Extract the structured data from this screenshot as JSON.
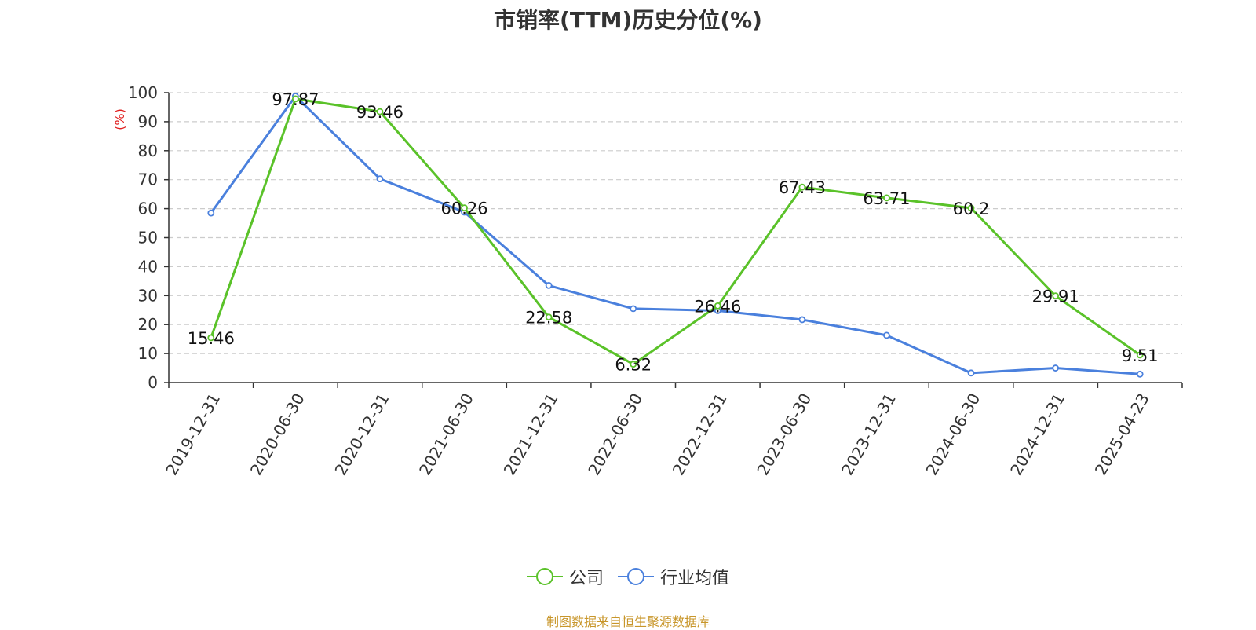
{
  "chart_data": {
    "type": "line",
    "title": "市销率(TTM)历史分位(%)",
    "ylabel": "(%)",
    "ylim": [
      0,
      100
    ],
    "yticks": [
      0,
      10,
      20,
      30,
      40,
      50,
      60,
      70,
      80,
      90,
      100
    ],
    "grid": true,
    "legend_position": "bottom-center",
    "categories": [
      "2019-12-31",
      "2020-06-30",
      "2020-12-31",
      "2021-06-30",
      "2021-12-31",
      "2022-06-30",
      "2022-12-31",
      "2023-06-30",
      "2023-12-31",
      "2024-06-30",
      "2024-12-31",
      "2025-04-23"
    ],
    "series": [
      {
        "name": "公司",
        "color": "#5ac229",
        "values": [
          15.46,
          97.87,
          93.46,
          60.26,
          22.58,
          6.32,
          26.46,
          67.43,
          63.71,
          60.2,
          29.91,
          9.51
        ],
        "data_labels": [
          "15.46",
          "97.87",
          "93.46",
          "60.26",
          "22.58",
          "6.32",
          "26.46",
          "67.43",
          "63.71",
          "60.2",
          "29.91",
          "9.51"
        ]
      },
      {
        "name": "行业均值",
        "color": "#4a80dd",
        "values": [
          58.5,
          98.8,
          70.3,
          58.8,
          33.5,
          25.5,
          24.8,
          21.7,
          16.3,
          3.3,
          5.0,
          2.9
        ]
      }
    ]
  },
  "source_note": "制图数据来自恒生聚源数据库"
}
